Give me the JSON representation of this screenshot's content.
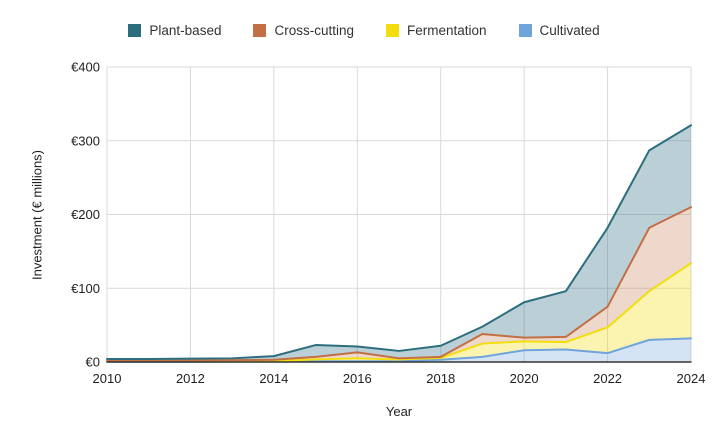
{
  "chart_data": {
    "type": "area",
    "variant": "stacked",
    "title": "",
    "xlabel": "Year",
    "ylabel": "Investment (€ millions)",
    "x": [
      2010,
      2011,
      2012,
      2013,
      2014,
      2015,
      2016,
      2017,
      2018,
      2019,
      2020,
      2021,
      2022,
      2023,
      2024
    ],
    "ylim": [
      0,
      400
    ],
    "xticks": [
      {
        "value": 2010,
        "label": "2010"
      },
      {
        "value": 2012,
        "label": "2012"
      },
      {
        "value": 2014,
        "label": "2014"
      },
      {
        "value": 2016,
        "label": "2016"
      },
      {
        "value": 2018,
        "label": "2018"
      },
      {
        "value": 2020,
        "label": "2020"
      },
      {
        "value": 2022,
        "label": "2022"
      },
      {
        "value": 2024,
        "label": "2024"
      }
    ],
    "yticks": [
      {
        "value": 0,
        "label": "€0"
      },
      {
        "value": 100,
        "label": "€100"
      },
      {
        "value": 200,
        "label": "€200"
      },
      {
        "value": 300,
        "label": "€300"
      },
      {
        "value": 400,
        "label": "€400"
      }
    ],
    "legend_position": "top-center",
    "grid": true,
    "grid_color": "#d9d9d9",
    "axis_color": "#333333",
    "background": "#ffffff",
    "stack_order_bottom_to_top": [
      "Cultivated",
      "Fermentation",
      "Cross-cutting",
      "Plant-based"
    ],
    "series": [
      {
        "id": "plant-based",
        "name": "Plant-based",
        "color": "#2d6e7e",
        "fill": "rgba(45,110,126,0.32)",
        "values": [
          2.5,
          2.5,
          2.5,
          2.5,
          5,
          16,
          8,
          10,
          15,
          10,
          48,
          62,
          107,
          105,
          111
        ]
      },
      {
        "id": "cross-cutting",
        "name": "Cross-cutting",
        "color": "#c26f45",
        "fill": "rgba(194,111,69,0.28)",
        "values": [
          1,
          1,
          1.2,
          1.5,
          2,
          3.5,
          8,
          1.5,
          1.5,
          13,
          5,
          7,
          28,
          86,
          76
        ]
      },
      {
        "id": "fermentation",
        "name": "Fermentation",
        "color": "#f2de0c",
        "fill": "rgba(242,222,12,0.32)",
        "values": [
          0.3,
          0.3,
          0.4,
          0.5,
          0.5,
          2.5,
          4,
          2.5,
          2.5,
          18,
          12,
          10,
          35,
          66,
          102
        ]
      },
      {
        "id": "cultivated",
        "name": "Cultivated",
        "color": "#6fa4dc",
        "fill": "rgba(111,164,220,0.30)",
        "values": [
          0.3,
          0.3,
          0.4,
          0.5,
          0.5,
          1,
          1,
          1,
          3,
          7,
          16,
          17,
          12,
          30,
          32
        ]
      }
    ]
  }
}
